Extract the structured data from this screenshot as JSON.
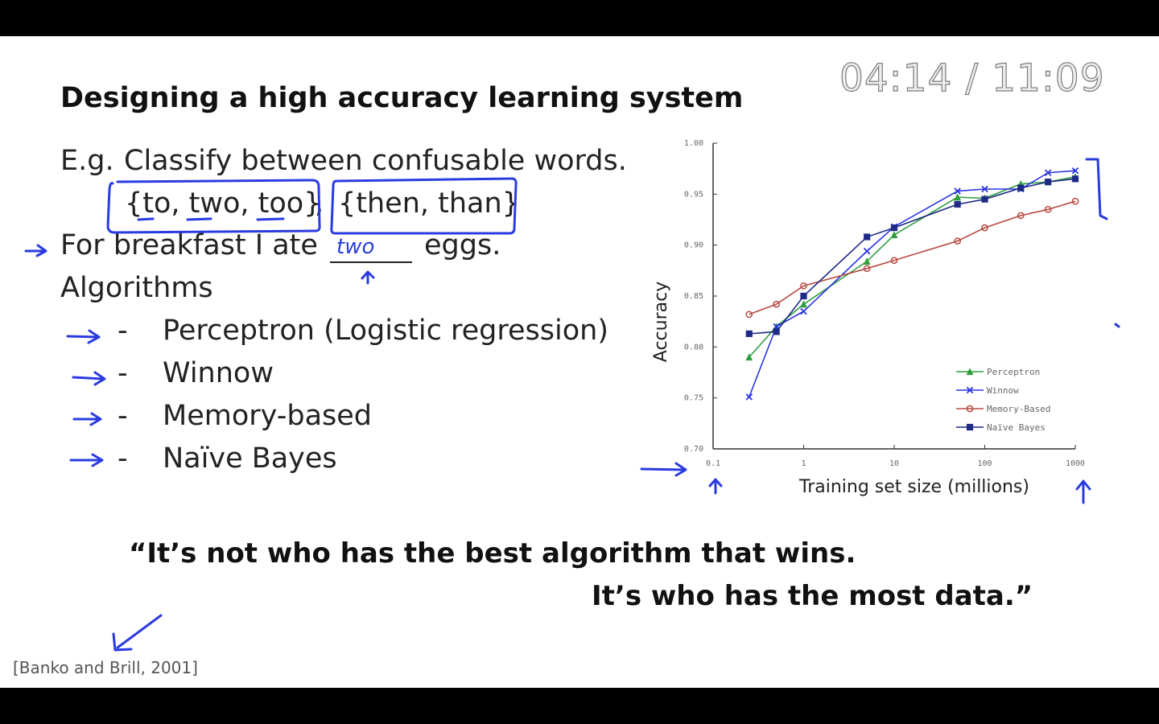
{
  "player": {
    "time_display": "04:14 / 11:09"
  },
  "slide": {
    "title": "Designing a high accuracy learning system",
    "example_prefix": "E.g.",
    "example_text": "Classify between confusable words.",
    "set1": "{to, two, too}",
    "set1_comma": ",",
    "set2": "{then, than}",
    "sentence_a": "For breakfast I ate",
    "sentence_b": "eggs.",
    "handwritten_answer": "two",
    "algorithms_heading": "Algorithms",
    "algorithms": [
      {
        "dash": "-",
        "name": "Perceptron (Logistic regression)"
      },
      {
        "dash": "-",
        "name": "Winnow"
      },
      {
        "dash": "-",
        "name": "Memory-based"
      },
      {
        "dash": "-",
        "name": "Naïve Bayes"
      }
    ],
    "quote_line1": "“It’s not who has the best algorithm that wins.",
    "quote_line2": "It’s who has the most data.”",
    "citation": "[Banko and Brill, 2001]"
  },
  "chart_data": {
    "type": "line",
    "xlabel": "Training set size (millions)",
    "ylabel": "Accuracy",
    "x_scale": "log",
    "xlim": [
      0.1,
      1000
    ],
    "ylim": [
      0.7,
      1.0
    ],
    "x_ticks": [
      "0.1",
      "1",
      "10",
      "100",
      "1000"
    ],
    "y_ticks": [
      "0.70",
      "0.75",
      "0.80",
      "0.85",
      "0.90",
      "0.95",
      "1.00"
    ],
    "legend_position": "bottom-right",
    "series": [
      {
        "name": "Perceptron",
        "color": "#2e9e3e",
        "marker": "triangle",
        "x": [
          0.25,
          0.5,
          1,
          5,
          10,
          50,
          100,
          250,
          500,
          1000
        ],
        "y": [
          0.79,
          0.82,
          0.842,
          0.884,
          0.91,
          0.947,
          0.946,
          0.96,
          0.962,
          0.967
        ]
      },
      {
        "name": "Winnow",
        "color": "#2a35e0",
        "marker": "x",
        "x": [
          0.25,
          0.5,
          1,
          5,
          10,
          50,
          100,
          250,
          500,
          1000
        ],
        "y": [
          0.751,
          0.82,
          0.835,
          0.894,
          0.918,
          0.953,
          0.955,
          0.955,
          0.971,
          0.973
        ]
      },
      {
        "name": "Memory-Based",
        "color": "#b84a42",
        "marker": "circle",
        "x": [
          0.25,
          0.5,
          1,
          5,
          10,
          50,
          100,
          250,
          500,
          1000
        ],
        "y": [
          0.832,
          0.842,
          0.86,
          0.877,
          0.885,
          0.904,
          0.917,
          0.929,
          0.935,
          0.943
        ]
      },
      {
        "name": "Naïve Bayes",
        "color": "#1e2a86",
        "marker": "square",
        "x": [
          0.25,
          0.5,
          1,
          5,
          10,
          50,
          100,
          250,
          500,
          1000
        ],
        "y": [
          0.813,
          0.815,
          0.85,
          0.908,
          0.917,
          0.94,
          0.945,
          0.956,
          0.962,
          0.965
        ]
      }
    ]
  },
  "colors": {
    "ink": "#2a3be0",
    "timer_fill": "#eeeeee",
    "timer_stroke": "#7a7a7a"
  }
}
